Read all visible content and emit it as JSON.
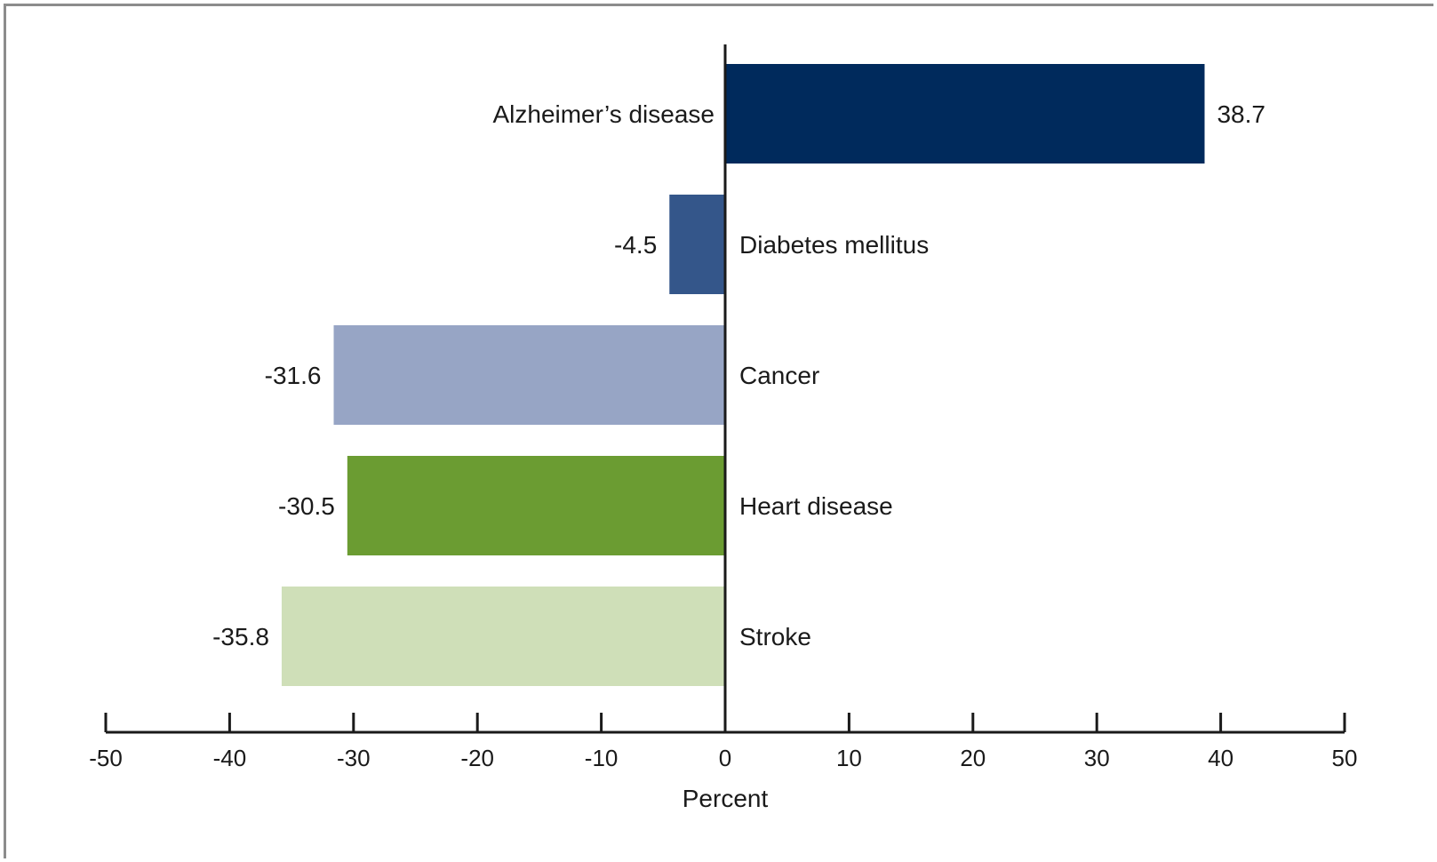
{
  "chart_data": {
    "type": "bar",
    "orientation": "horizontal",
    "categories": [
      "Alzheimer’s disease",
      "Diabetes mellitus",
      "Cancer",
      "Heart disease",
      "Stroke"
    ],
    "values": [
      38.7,
      -4.5,
      -31.6,
      -30.5,
      -35.8
    ],
    "value_labels": [
      "38.7",
      "-4.5",
      "-31.6",
      "-30.5",
      "-35.8"
    ],
    "colors": [
      "#002a5c",
      "#34568a",
      "#97a5c5",
      "#6b9c32",
      "#cfdfb8"
    ],
    "xlabel": "Percent",
    "xlim": [
      -50,
      50
    ],
    "xticks": [
      -50,
      -40,
      -30,
      -20,
      -10,
      0,
      10,
      20,
      30,
      40,
      50
    ],
    "grid": false
  }
}
